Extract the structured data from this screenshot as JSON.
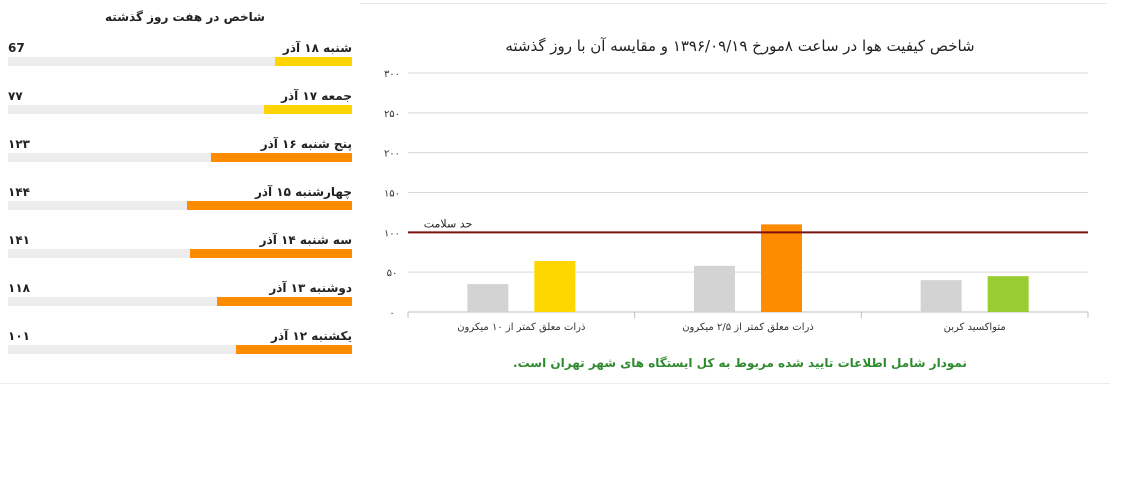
{
  "week": {
    "title": "شاخص در هفت روز گذشته",
    "scale_max": 300,
    "items": [
      {
        "day": "شنبه ۱۸ آذر",
        "value": "67",
        "num": 67,
        "color": "#ffd400"
      },
      {
        "day": "جمعه ۱۷ آذر",
        "value": "۷۷",
        "num": 77,
        "color": "#ffd400"
      },
      {
        "day": "پنج شنبه ۱۶ آذر",
        "value": "۱۲۳",
        "num": 123,
        "color": "#ff8c00"
      },
      {
        "day": "چهارشنبه ۱۵ آذر",
        "value": "۱۴۴",
        "num": 144,
        "color": "#ff8c00"
      },
      {
        "day": "سه شنبه ۱۴ آذر",
        "value": "۱۴۱",
        "num": 141,
        "color": "#ff8c00"
      },
      {
        "day": "دوشنبه ۱۳ آذر",
        "value": "۱۱۸",
        "num": 118,
        "color": "#ff8c00"
      },
      {
        "day": "یکشنبه ۱۲ آذر",
        "value": "۱۰۱",
        "num": 101,
        "color": "#ff8c00"
      }
    ]
  },
  "chart_data": {
    "type": "bar",
    "title": "شاخص کیفیت هوا در ساعت ۸مورخ ۱۳۹۶/۰۹/۱۹ و مقایسه آن با روز گذشته",
    "categories": [
      "متواکسید کربن",
      "ذرات معلق کمتر از ۲/۵ میکرون",
      "ذرات معلق کمتر از ۱۰ میکرون"
    ],
    "series": [
      {
        "values": [
          40,
          58,
          35
        ],
        "colors": [
          "#d3d3d3",
          "#d3d3d3",
          "#d3d3d3"
        ]
      },
      {
        "values": [
          45,
          110,
          64
        ],
        "colors": [
          "#9acd32",
          "#ff8c00",
          "#ffd700"
        ]
      }
    ],
    "ylim": [
      0,
      300
    ],
    "yticks": [
      0,
      50,
      100,
      150,
      200,
      250,
      300
    ],
    "ytick_labels": [
      "۰",
      "۵۰",
      "۱۰۰",
      "۱۵۰",
      "۲۰۰",
      "۲۵۰",
      "۳۰۰"
    ],
    "reference_line": {
      "value": 100,
      "label": "حد سلامت",
      "color": "#7b1010"
    },
    "grid": true
  },
  "footnote": "نمودار شامل اطلاعات تایید شده مربوط به کل ایستگاه های شهر تهران است."
}
